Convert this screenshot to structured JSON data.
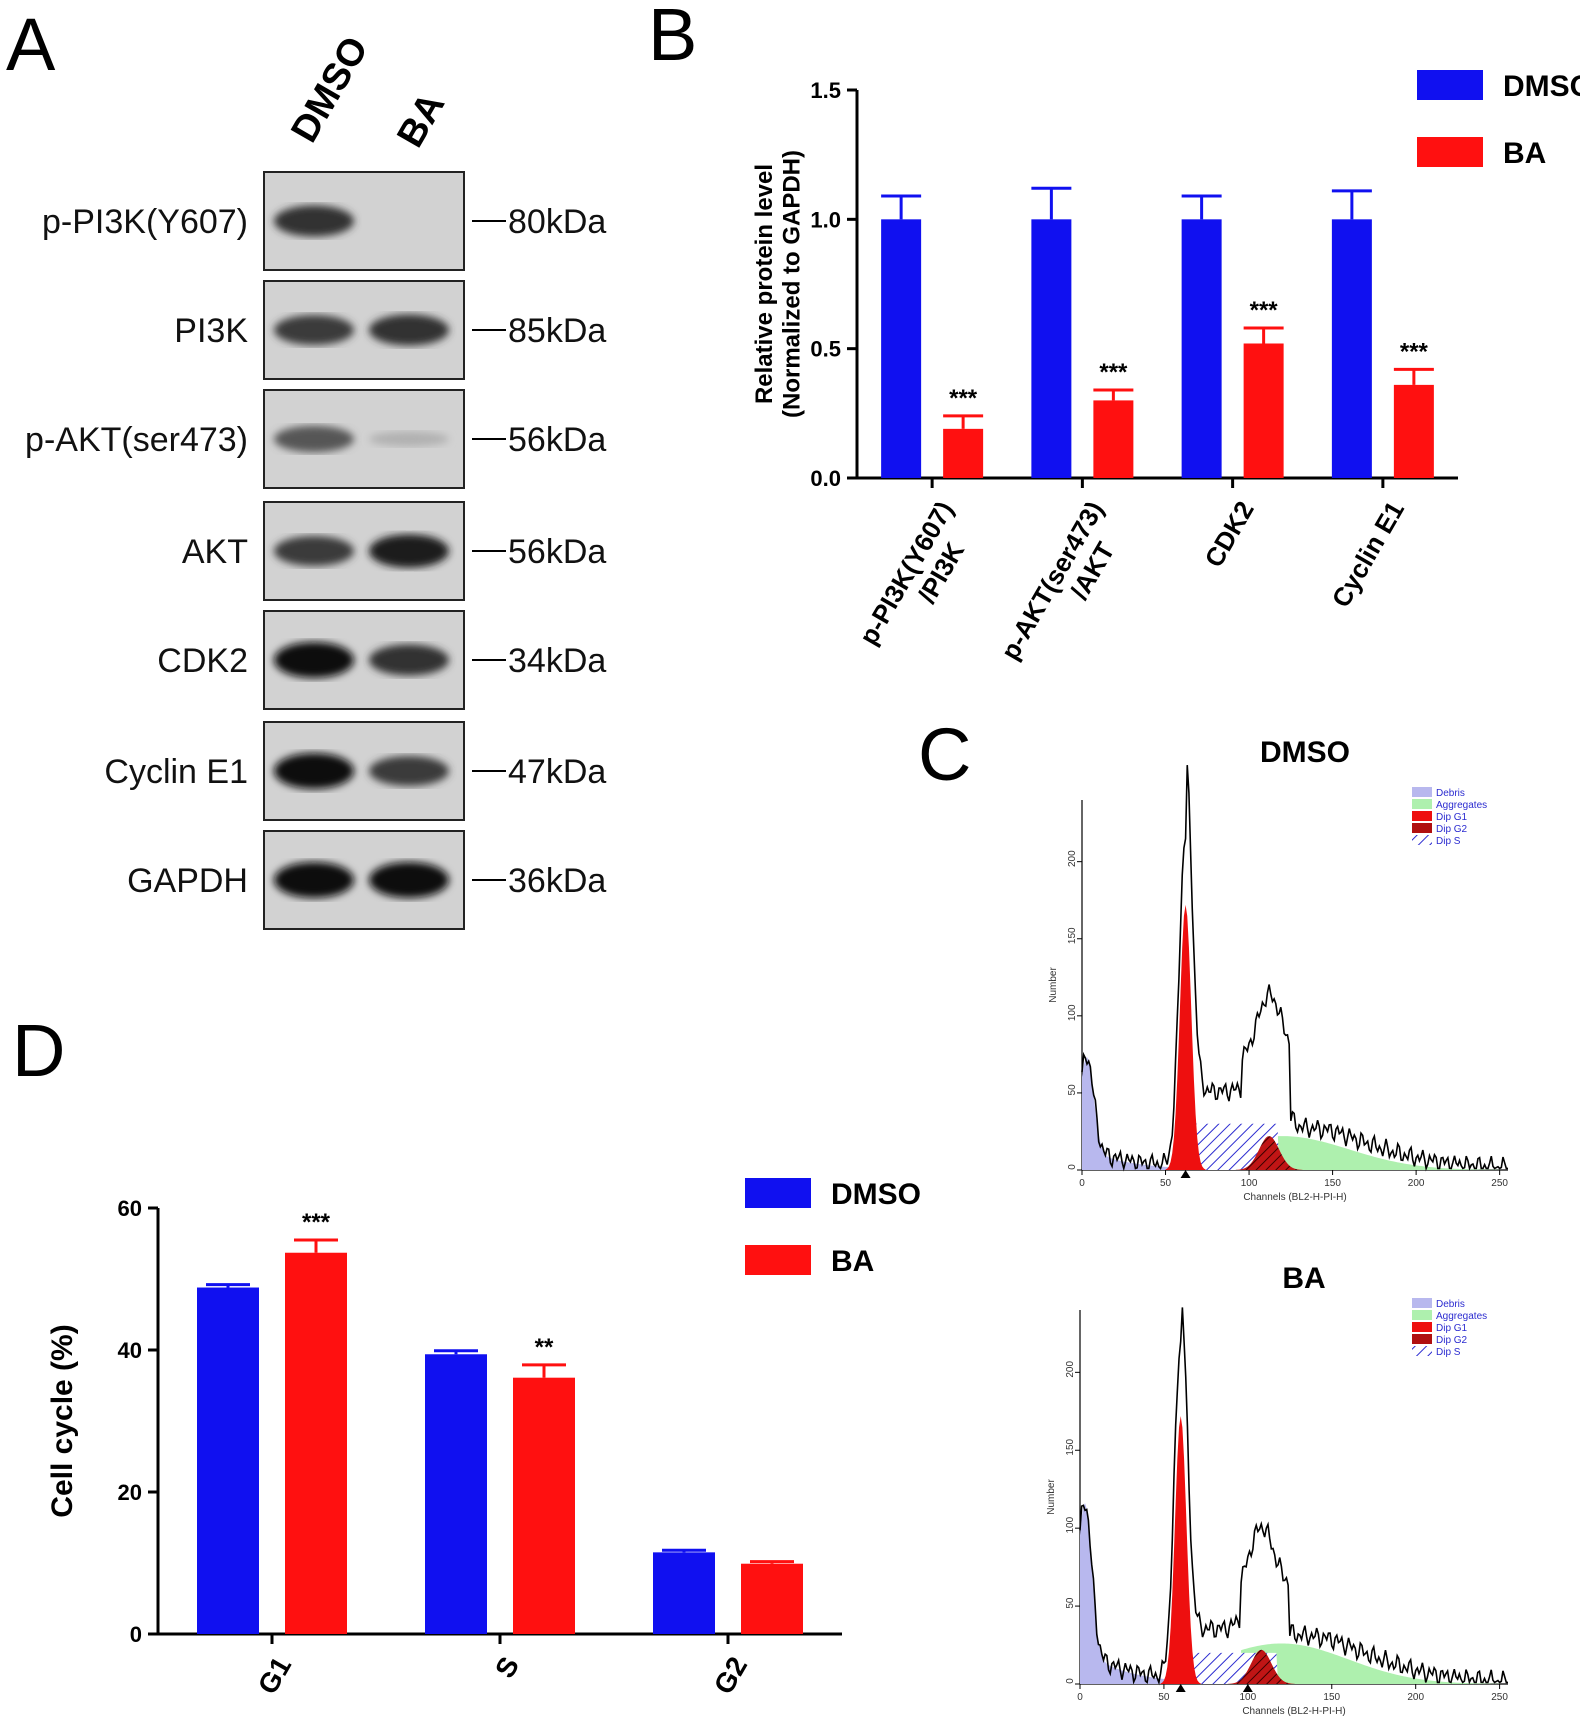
{
  "panels": {
    "A": {
      "letter": "A",
      "lanes": [
        "DMSO",
        "BA"
      ],
      "blots": [
        {
          "label": "p-PI3K(Y607)",
          "mw": "80kDa",
          "band_intensity": [
            0.8,
            0.0
          ]
        },
        {
          "label": "PI3K",
          "mw": "85kDa",
          "band_intensity": [
            0.75,
            0.8
          ]
        },
        {
          "label": "p-AKT(ser473)",
          "mw": "56kDa",
          "band_intensity": [
            0.6,
            0.12
          ]
        },
        {
          "label": "AKT",
          "mw": "56kDa",
          "band_intensity": [
            0.75,
            0.9
          ]
        },
        {
          "label": "CDK2",
          "mw": "34kDa",
          "band_intensity": [
            1.0,
            0.8
          ]
        },
        {
          "label": "Cyclin E1",
          "mw": "47kDa",
          "band_intensity": [
            1.0,
            0.75
          ]
        },
        {
          "label": "GAPDH",
          "mw": "36kDa",
          "band_intensity": [
            1.0,
            1.0
          ]
        }
      ]
    },
    "B": {
      "letter": "B"
    },
    "C": {
      "letter": "C",
      "histograms": [
        {
          "title": "DMSO",
          "ylabel": "Number",
          "xlabel": "Channels (BL2-H-PI-H)",
          "xticks": [
            "0",
            "50",
            "100",
            "150",
            "200",
            "250"
          ],
          "yticks": [
            "0",
            "50",
            "100",
            "150",
            "200"
          ],
          "legend": [
            "Debris",
            "Aggregates",
            "Dip G1",
            "Dip G2",
            "Dip S"
          ]
        },
        {
          "title": "BA",
          "ylabel": "Number",
          "xlabel": "Channels (BL2-H-PI-H)",
          "xticks": [
            "0",
            "50",
            "100",
            "150",
            "200",
            "250"
          ],
          "yticks": [
            "0",
            "50",
            "100",
            "150",
            "200"
          ],
          "legend": [
            "Debris",
            "Aggregates",
            "Dip G1",
            "Dip G2",
            "Dip S"
          ]
        }
      ]
    },
    "D": {
      "letter": "D"
    }
  },
  "chart_data": [
    {
      "id": "B",
      "type": "bar",
      "categories": [
        "p-PI3K(Y607)\n/PI3K",
        "p-AKT(ser473)\n/AKT",
        "CDK2",
        "Cyclin E1"
      ],
      "series": [
        {
          "name": "DMSO",
          "color": "#1010f0",
          "values": [
            1.0,
            1.0,
            1.0,
            1.0
          ],
          "errors": [
            0.09,
            0.12,
            0.09,
            0.11
          ]
        },
        {
          "name": "BA",
          "color": "#ff1010",
          "values": [
            0.19,
            0.3,
            0.52,
            0.36
          ],
          "errors": [
            0.05,
            0.04,
            0.06,
            0.06
          ]
        }
      ],
      "significance": [
        "***",
        "***",
        "***",
        "***"
      ],
      "ylabel": "Relative protein level\n(Normalized to GAPDH)",
      "xlabel": "",
      "ylim": [
        0,
        1.5
      ],
      "yticks": [
        "0.0",
        "0.5",
        "1.0",
        "1.5"
      ],
      "grid": false,
      "legend_position": "top-right"
    },
    {
      "id": "D",
      "type": "bar",
      "categories": [
        "G1",
        "S",
        "G2"
      ],
      "series": [
        {
          "name": "DMSO",
          "color": "#1010f0",
          "values": [
            48.8,
            39.4,
            11.5
          ],
          "errors": [
            0.4,
            0.5,
            0.3
          ]
        },
        {
          "name": "BA",
          "color": "#ff1010",
          "values": [
            53.7,
            36.1,
            9.9
          ],
          "errors": [
            1.8,
            1.8,
            0.3
          ]
        }
      ],
      "significance": [
        "***",
        "**",
        ""
      ],
      "ylabel": "Cell cycle (%)",
      "xlabel": "",
      "ylim": [
        0,
        60
      ],
      "yticks": [
        "0",
        "20",
        "40",
        "60"
      ],
      "grid": false,
      "legend_position": "top-right"
    }
  ]
}
